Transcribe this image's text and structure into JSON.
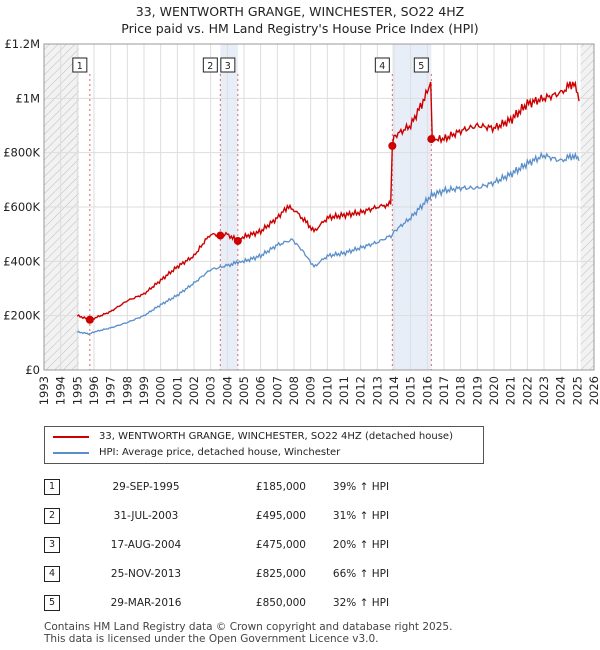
{
  "title": "33, WENTWORTH GRANGE, WINCHESTER, SO22 4HZ",
  "subtitle": "Price paid vs. HM Land Registry's House Price Index (HPI)",
  "legend": {
    "property": "33, WENTWORTH GRANGE, WINCHESTER, SO22 4HZ (detached house)",
    "hpi": "HPI: Average price, detached house, Winchester"
  },
  "sales": [
    {
      "n": "1",
      "date": "29-SEP-1995",
      "price": "£185,000",
      "hpi": "39% ↑ HPI"
    },
    {
      "n": "2",
      "date": "31-JUL-2003",
      "price": "£495,000",
      "hpi": "31% ↑ HPI"
    },
    {
      "n": "3",
      "date": "17-AUG-2004",
      "price": "£475,000",
      "hpi": "20% ↑ HPI"
    },
    {
      "n": "4",
      "date": "25-NOV-2013",
      "price": "£825,000",
      "hpi": "66% ↑ HPI"
    },
    {
      "n": "5",
      "date": "29-MAR-2016",
      "price": "£850,000",
      "hpi": "32% ↑ HPI"
    }
  ],
  "footer": {
    "line1": "Contains HM Land Registry data © Crown copyright and database right 2025.",
    "line2": "This data is licensed under the Open Government Licence v3.0."
  },
  "colors": {
    "property": "#cc0000",
    "hpi": "#5b8fc9",
    "grid": "#dddddd",
    "band": "#e8eef8"
  },
  "chart_data": {
    "type": "line",
    "xlim": [
      1993,
      2026
    ],
    "ylim": [
      0,
      1200000
    ],
    "yticks": [
      0,
      200000,
      400000,
      600000,
      800000,
      1000000,
      1200000
    ],
    "yticklabels": [
      "£0",
      "£200K",
      "£400K",
      "£600K",
      "£800K",
      "£1M",
      "£1.2M"
    ],
    "xticks": [
      1993,
      1994,
      1995,
      1996,
      1997,
      1998,
      1999,
      2000,
      2001,
      2002,
      2003,
      2004,
      2005,
      2006,
      2007,
      2008,
      2009,
      2010,
      2011,
      2012,
      2013,
      2014,
      2015,
      2016,
      2017,
      2018,
      2019,
      2020,
      2021,
      2022,
      2023,
      2024,
      2025,
      2026
    ],
    "shaded_ranges": [
      [
        1993,
        1995.1
      ],
      [
        2025.2,
        2026
      ]
    ],
    "series": [
      {
        "name": "33, WENTWORTH GRANGE, WINCHESTER, SO22 4HZ (detached house)",
        "color": "#cc0000",
        "x": [
          1995.0,
          1995.75,
          1996,
          1997,
          1998,
          1999,
          2000,
          2001,
          2002,
          2002.6,
          2003.0,
          2003.58,
          2004.0,
          2004.63,
          2005,
          2006,
          2007,
          2007.6,
          2008,
          2008.8,
          2009.2,
          2010,
          2011,
          2012,
          2013,
          2013.8,
          2013.9,
          2014,
          2015,
          2016.0,
          2016.2,
          2016.3,
          2017,
          2018,
          2019,
          2020,
          2021,
          2022,
          2023,
          2024,
          2024.8,
          2025.1
        ],
        "y": [
          200000,
          185000,
          190000,
          215000,
          255000,
          280000,
          330000,
          380000,
          420000,
          470000,
          500000,
          495000,
          500000,
          475000,
          490000,
          510000,
          560000,
          600000,
          590000,
          540000,
          510000,
          560000,
          570000,
          580000,
          600000,
          610000,
          825000,
          860000,
          900000,
          1020000,
          1060000,
          850000,
          850000,
          880000,
          900000,
          890000,
          920000,
          980000,
          1000000,
          1020000,
          1060000,
          990000
        ]
      },
      {
        "name": "HPI: Average price, detached house, Winchester",
        "color": "#5b8fc9",
        "x": [
          1995.0,
          1995.75,
          1996,
          1997,
          1998,
          1999,
          2000,
          2001,
          2002,
          2003.0,
          2003.58,
          2004.0,
          2004.63,
          2005,
          2006,
          2007,
          2007.9,
          2008.5,
          2009.2,
          2010,
          2011,
          2012,
          2013,
          2013.9,
          2014,
          2015,
          2016.25,
          2017,
          2018,
          2019,
          2020,
          2021,
          2022,
          2023,
          2024,
          2024.8,
          2025.1
        ],
        "y": [
          140000,
          133000,
          140000,
          155000,
          175000,
          200000,
          240000,
          275000,
          320000,
          370000,
          378000,
          385000,
          396000,
          400000,
          420000,
          460000,
          480000,
          440000,
          380000,
          420000,
          430000,
          450000,
          470000,
          497000,
          510000,
          560000,
          643000,
          660000,
          670000,
          670000,
          690000,
          720000,
          760000,
          790000,
          770000,
          790000,
          770000
        ]
      }
    ],
    "markers": [
      {
        "label": "1",
        "x": 1995.75,
        "y": 185000
      },
      {
        "label": "2",
        "x": 2003.58,
        "y": 495000
      },
      {
        "label": "3",
        "x": 2004.63,
        "y": 475000
      },
      {
        "label": "4",
        "x": 2013.9,
        "y": 825000
      },
      {
        "label": "5",
        "x": 2016.24,
        "y": 850000
      }
    ]
  }
}
